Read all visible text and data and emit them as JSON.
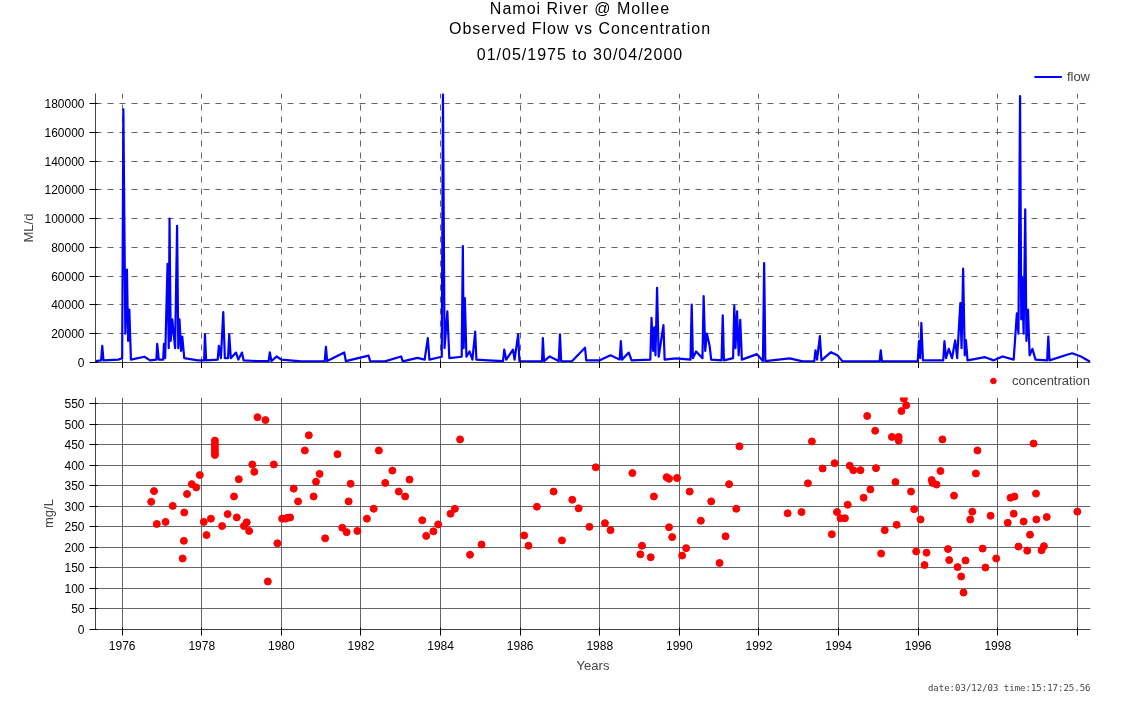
{
  "chart_data": [
    {
      "type": "line",
      "title": "Namoi River @ Mollee\nObserved Flow vs Concentration",
      "subtitle": "01/05/1975 to 30/04/2000",
      "ylabel": "ML/d",
      "legend": "top right",
      "grid": true,
      "line_style": "solid",
      "tick_labels": "y",
      "xlim": [
        1975.33,
        2000.33
      ],
      "xticks": [
        1976,
        1978,
        1980,
        1982,
        1984,
        1986,
        1988,
        1990,
        1992,
        1994,
        1996,
        1998,
        2000
      ],
      "ylim": [
        0,
        187000
      ],
      "yticks": [
        0,
        20000,
        40000,
        60000,
        80000,
        100000,
        120000,
        140000,
        160000,
        180000
      ],
      "series": [
        {
          "name": "flow",
          "color": "#0000ff",
          "x": [
            1975.33,
            1975.47,
            1975.5,
            1975.53,
            1975.9,
            1976.0,
            1976.03,
            1976.08,
            1976.12,
            1976.15,
            1976.18,
            1976.22,
            1976.56,
            1976.7,
            1976.86,
            1976.88,
            1976.92,
            1977.03,
            1977.05,
            1977.08,
            1977.14,
            1977.17,
            1977.19,
            1977.22,
            1977.26,
            1977.33,
            1977.38,
            1977.41,
            1977.44,
            1977.48,
            1977.51,
            1977.56,
            1977.9,
            1978.06,
            1978.08,
            1978.11,
            1978.4,
            1978.43,
            1978.48,
            1978.54,
            1978.58,
            1978.66,
            1978.69,
            1978.73,
            1978.86,
            1978.92,
            1979.01,
            1979.05,
            1979.4,
            1979.68,
            1979.71,
            1979.75,
            1979.88,
            1980.0,
            1980.5,
            1981.09,
            1981.12,
            1981.15,
            1981.58,
            1981.62,
            1982.19,
            1982.23,
            1982.6,
            1983.01,
            1983.05,
            1983.42,
            1983.6,
            1983.68,
            1983.72,
            1984.03,
            1984.06,
            1984.1,
            1984.17,
            1984.22,
            1984.53,
            1984.56,
            1984.58,
            1984.61,
            1984.65,
            1984.73,
            1984.8,
            1984.87,
            1984.9,
            1985.2,
            1985.57,
            1985.6,
            1985.65,
            1985.82,
            1985.86,
            1985.95,
            1985.98,
            1986.3,
            1986.55,
            1986.57,
            1986.6,
            1986.74,
            1986.97,
            1987.0,
            1987.03,
            1987.3,
            1987.63,
            1987.66,
            1988.0,
            1988.27,
            1988.5,
            1988.53,
            1988.56,
            1988.73,
            1988.8,
            1989.27,
            1989.3,
            1989.34,
            1989.37,
            1989.4,
            1989.44,
            1989.48,
            1989.6,
            1989.63,
            1989.92,
            1990.28,
            1990.31,
            1990.34,
            1990.42,
            1990.58,
            1990.61,
            1990.65,
            1990.69,
            1990.76,
            1990.8,
            1991.06,
            1991.09,
            1991.12,
            1991.35,
            1991.38,
            1991.41,
            1991.45,
            1991.49,
            1991.53,
            1991.57,
            1991.95,
            1992.1,
            1992.13,
            1992.16,
            1992.77,
            1993.1,
            1993.39,
            1993.42,
            1993.46,
            1993.53,
            1993.57,
            1993.81,
            1993.97,
            1994.1,
            1995.03,
            1995.06,
            1995.09,
            1995.99,
            1996.02,
            1996.05,
            1996.08,
            1996.12,
            1996.63,
            1996.66,
            1996.7,
            1996.77,
            1996.85,
            1996.93,
            1996.98,
            1997.06,
            1997.09,
            1997.13,
            1997.17,
            1997.2,
            1997.24,
            1997.68,
            1997.9,
            1998.12,
            1998.4,
            1998.48,
            1998.52,
            1998.56,
            1998.59,
            1998.61,
            1998.65,
            1998.69,
            1998.72,
            1998.76,
            1998.8,
            1998.87,
            1998.95,
            1999.24,
            1999.27,
            1999.3,
            1999.76,
            1999.87,
            2000.09,
            2000.32
          ],
          "values": [
            1000,
            1500,
            11600,
            1500,
            2000,
            3000,
            176000,
            20000,
            64600,
            15000,
            36800,
            2000,
            4000,
            1500,
            2000,
            13000,
            2000,
            2000,
            13000,
            3000,
            68600,
            10000,
            100000,
            15000,
            30000,
            10000,
            95000,
            10000,
            30000,
            8000,
            18000,
            3000,
            1500,
            1500,
            19600,
            1500,
            2000,
            11600,
            3000,
            35000,
            3000,
            3000,
            19600,
            3000,
            6900,
            2000,
            6900,
            1500,
            1000,
            1000,
            7000,
            1000,
            4200,
            2000,
            800,
            1000,
            10900,
            1000,
            7000,
            1000,
            4800,
            1000,
            800,
            4200,
            800,
            3200,
            2000,
            17000,
            2000,
            4000,
            186500,
            10000,
            35500,
            3000,
            4000,
            81000,
            10000,
            44800,
            4000,
            7700,
            2000,
            21500,
            2000,
            1500,
            1000,
            9000,
            2000,
            9000,
            2000,
            19600,
            1000,
            800,
            1000,
            17000,
            1000,
            4200,
            1000,
            19600,
            1000,
            800,
            10300,
            1500,
            1500,
            5000,
            2000,
            14800,
            2000,
            6900,
            1500,
            2000,
            31000,
            8000,
            24400,
            5000,
            51900,
            4000,
            26000,
            2000,
            2900,
            2000,
            40300,
            3000,
            7700,
            3000,
            46100,
            8000,
            20100,
            11600,
            2000,
            1500,
            32800,
            1500,
            3000,
            39500,
            10000,
            35500,
            5000,
            29700,
            2000,
            5800,
            1000,
            69100,
            1000,
            2900,
            800,
            1000,
            8500,
            2000,
            18300,
            1500,
            7200,
            5000,
            800,
            800,
            8500,
            800,
            1000,
            14800,
            3000,
            27500,
            1500,
            1500,
            14800,
            3000,
            9500,
            3000,
            15400,
            3000,
            41300,
            10000,
            65200,
            5000,
            15600,
            1500,
            3700,
            1500,
            4200,
            2000,
            34200,
            20000,
            185200,
            30000,
            59300,
            20000,
            106500,
            15000,
            36800,
            5000,
            9500,
            2000,
            1500,
            18000,
            1500,
            5600,
            6400,
            4200,
            500
          ]
        }
      ]
    },
    {
      "type": "scatter",
      "xlabel": "Years",
      "ylabel": "mg/L",
      "legend": "top right",
      "grid": true,
      "marker": "circle",
      "annotations": [
        "date:03/12/03 time:15:17:25.56"
      ],
      "xlim": [
        1975.33,
        2000.33
      ],
      "xticks": [
        {
          "value": 1976,
          "label": "1976"
        },
        {
          "value": 1978,
          "label": "1978"
        },
        {
          "value": 1980,
          "label": "1980"
        },
        {
          "value": 1982,
          "label": "1982"
        },
        {
          "value": 1984,
          "label": "1984"
        },
        {
          "value": 1986,
          "label": "1986"
        },
        {
          "value": 1988,
          "label": "1988"
        },
        {
          "value": 1990,
          "label": "1990"
        },
        {
          "value": 1992,
          "label": "1992"
        },
        {
          "value": 1994,
          "label": "1994"
        },
        {
          "value": 1996,
          "label": "1996"
        },
        {
          "value": 1998,
          "label": "1998"
        },
        {
          "value": 2000,
          "label": null
        }
      ],
      "ylim": [
        0,
        565
      ],
      "yticks": [
        0,
        50,
        100,
        150,
        200,
        250,
        300,
        350,
        400,
        450,
        500,
        550
      ],
      "series": [
        {
          "name": "concentration",
          "color": "#ff0000",
          "x": [
            1976.73,
            1976.8,
            1976.87,
            1977.09,
            1977.27,
            1977.52,
            1977.55,
            1977.56,
            1977.63,
            1977.75,
            1977.86,
            1977.95,
            1978.05,
            1978.12,
            1978.23,
            1978.33,
            1978.33,
            1978.33,
            1978.33,
            1978.33,
            1978.33,
            1978.51,
            1978.65,
            1978.81,
            1978.88,
            1978.93,
            1979.06,
            1979.13,
            1979.19,
            1979.27,
            1979.32,
            1979.4,
            1979.6,
            1979.66,
            1979.81,
            1979.9,
            1980.02,
            1980.1,
            1980.16,
            1980.22,
            1980.31,
            1980.42,
            1980.59,
            1980.69,
            1980.81,
            1980.87,
            1980.96,
            1981.1,
            1981.41,
            1981.53,
            1981.64,
            1981.69,
            1981.74,
            1981.91,
            1982.15,
            1982.32,
            1982.45,
            1982.61,
            1982.79,
            1982.95,
            1983.11,
            1983.22,
            1983.54,
            1983.64,
            1983.82,
            1983.94,
            1984.25,
            1984.36,
            1984.49,
            1984.74,
            1985.03,
            1986.1,
            1986.21,
            1986.42,
            1986.84,
            1987.05,
            1987.31,
            1987.47,
            1987.74,
            1987.9,
            1988.13,
            1988.27,
            1988.82,
            1989.02,
            1989.06,
            1989.28,
            1989.36,
            1989.68,
            1989.74,
            1989.94,
            1989.74,
            1989.82,
            1990.07,
            1990.17,
            1990.26,
            1990.54,
            1990.8,
            1991.01,
            1991.16,
            1991.25,
            1991.43,
            1991.51,
            1992.72,
            1993.07,
            1993.23,
            1993.33,
            1993.6,
            1993.83,
            1993.9,
            1993.96,
            1994.05,
            1994.16,
            1994.23,
            1994.28,
            1994.37,
            1994.55,
            1994.63,
            1994.72,
            1994.8,
            1994.92,
            1994.94,
            1995.07,
            1995.16,
            1995.34,
            1995.43,
            1995.46,
            1995.51,
            1995.51,
            1995.58,
            1995.64,
            1995.7,
            1995.82,
            1995.9,
            1995.95,
            1996.06,
            1996.16,
            1996.21,
            1996.34,
            1996.36,
            1996.46,
            1996.56,
            1996.61,
            1996.75,
            1996.78,
            1996.9,
            1996.99,
            1997.08,
            1997.14,
            1997.19,
            1997.31,
            1997.36,
            1997.45,
            1997.49,
            1997.62,
            1997.69,
            1997.82,
            1997.96,
            1998.25,
            1998.32,
            1998.42,
            1998.4,
            1998.52,
            1998.65,
            1998.74,
            1998.81,
            1998.9,
            1998.96,
            1998.97,
            1999.1,
            1999.16,
            1999.23,
            2000.0
          ],
          "values": [
            311,
            337,
            257,
            262,
            301,
            173,
            216,
            285,
            330,
            354,
            346,
            376,
            262,
            230,
            270,
            460,
            452,
            445,
            437,
            430,
            425,
            252,
            281,
            324,
            273,
            366,
            252,
            261,
            240,
            402,
            384,
            517,
            510,
            117,
            402,
            210,
            270,
            270,
            272,
            273,
            343,
            312,
            436,
            473,
            324,
            360,
            379,
            222,
            427,
            248,
            237,
            312,
            355,
            240,
            270,
            294,
            436,
            357,
            387,
            336,
            324,
            365,
            266,
            228,
            239,
            256,
            282,
            294,
            463,
            182,
            207,
            229,
            204,
            299,
            336,
            217,
            316,
            295,
            250,
            395,
            259,
            242,
            381,
            183,
            204,
            176,
            324,
            371,
            367,
            369,
            249,
            225,
            180,
            198,
            336,
            265,
            312,
            162,
            227,
            354,
            294,
            446,
            283,
            286,
            356,
            458,
            392,
            232,
            405,
            286,
            271,
            271,
            304,
            399,
            388,
            388,
            321,
            520,
            341,
            484,
            393,
            185,
            242,
            469,
            359,
            255,
            469,
            460,
            532,
            562,
            546,
            336,
            293,
            190,
            268,
            157,
            187,
            364,
            357,
            353,
            386,
            463,
            196,
            169,
            326,
            152,
            129,
            90,
            168,
            268,
            287,
            380,
            436,
            197,
            151,
            277,
            173,
            260,
            321,
            324,
            282,
            202,
            263,
            192,
            231,
            453,
            331,
            268,
            193,
            203,
            274,
            287
          ]
        }
      ]
    }
  ]
}
